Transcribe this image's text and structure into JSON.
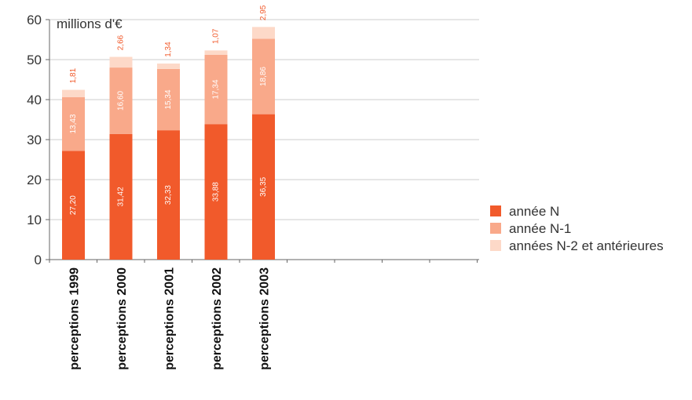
{
  "chart_data": {
    "type": "bar",
    "stacked": true,
    "unit_label": "millions d'€",
    "categories": [
      "perceptions 1999",
      "perceptions 2000",
      "perceptions 2001",
      "perceptions 2002",
      "perceptions 2003"
    ],
    "series": [
      {
        "name": "année N",
        "values": [
          27.2,
          31.42,
          32.33,
          33.88,
          36.35
        ],
        "labels": [
          "27,20",
          "31,42",
          "32,33",
          "33,88",
          "36,35"
        ],
        "color": "#f15a2b"
      },
      {
        "name": "année N-1",
        "values": [
          13.43,
          16.6,
          15.34,
          17.34,
          18.86
        ],
        "labels": [
          "13,43",
          "16,60",
          "15,34",
          "17,34",
          "18,86"
        ],
        "color": "#f9a98a"
      },
      {
        "name": "années N-2 et antérieures",
        "values": [
          1.81,
          2.66,
          1.34,
          1.07,
          2.95
        ],
        "labels": [
          "1,81",
          "2,66",
          "1,34",
          "1,07",
          "2,95"
        ],
        "color": "#fdd9c8"
      }
    ],
    "y_ticks": [
      "0",
      "10",
      "20",
      "30",
      "40",
      "50",
      "60"
    ],
    "ylim": [
      0,
      60
    ],
    "grid": true,
    "legend_position": "right",
    "colors": {
      "grid": "#cccccc",
      "axis": "#666666",
      "above_bar_label": "#f15a2b",
      "inside_bar_label": "#ffffff"
    }
  }
}
